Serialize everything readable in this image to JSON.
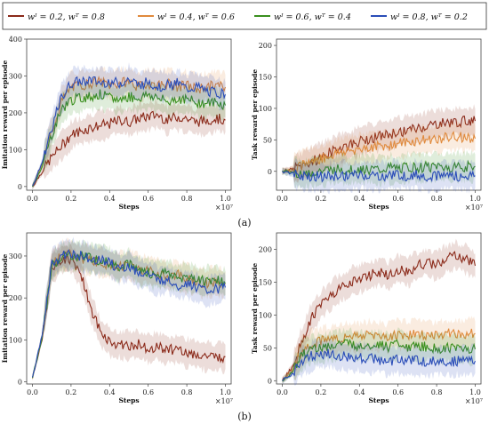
{
  "legend": {
    "entries": [
      {
        "label": "wᴵ = 0.2, wᵀ = 0.8",
        "color": "#8b2a1a"
      },
      {
        "label": "wᴵ = 0.4, wᵀ = 0.6",
        "color": "#e08a3c"
      },
      {
        "label": "wᴵ = 0.6, wᵀ = 0.4",
        "color": "#3a8f1e"
      },
      {
        "label": "wᴵ = 0.8, wᵀ = 0.2",
        "color": "#2a4db8"
      }
    ]
  },
  "captions": {
    "a": "(a)",
    "b": "(b)"
  },
  "x_multiplier": "×10⁷",
  "chart_data": [
    {
      "type": "line",
      "panel": "a-left",
      "xlabel": "Steps",
      "ylabel": "Imitation reward per episode",
      "x": [
        0.0,
        0.05,
        0.1,
        0.15,
        0.2,
        0.25,
        0.3,
        0.35,
        0.4,
        0.45,
        0.5,
        0.55,
        0.6,
        0.65,
        0.7,
        0.75,
        0.8,
        0.85,
        0.9,
        0.95,
        1.0
      ],
      "xticks": [
        "0.0",
        "0.2",
        "0.4",
        "0.6",
        "0.8",
        "1.0"
      ],
      "yticks": [
        "0",
        "100",
        "200",
        "300",
        "400"
      ],
      "xlim": [
        -0.03,
        1.03
      ],
      "ylim": [
        -10,
        400
      ],
      "series": [
        {
          "values": [
            0,
            40,
            80,
            110,
            140,
            150,
            160,
            165,
            170,
            180,
            175,
            185,
            190,
            195,
            180,
            190,
            185,
            175,
            180,
            185,
            180
          ]
        },
        {
          "values": [
            0,
            60,
            150,
            230,
            270,
            275,
            280,
            285,
            275,
            280,
            285,
            270,
            280,
            275,
            280,
            270,
            275,
            265,
            270,
            275,
            270
          ]
        },
        {
          "values": [
            0,
            55,
            140,
            210,
            235,
            240,
            245,
            250,
            240,
            235,
            245,
            240,
            250,
            240,
            230,
            240,
            235,
            230,
            225,
            230,
            220
          ]
        },
        {
          "values": [
            0,
            65,
            160,
            240,
            280,
            285,
            290,
            280,
            285,
            280,
            290,
            275,
            285,
            270,
            275,
            280,
            265,
            270,
            260,
            255,
            250
          ]
        }
      ]
    },
    {
      "type": "line",
      "panel": "a-right",
      "xlabel": "Steps",
      "ylabel": "Task reward per episode",
      "x": [
        0.0,
        0.05,
        0.1,
        0.15,
        0.2,
        0.25,
        0.3,
        0.35,
        0.4,
        0.45,
        0.5,
        0.55,
        0.6,
        0.65,
        0.7,
        0.75,
        0.8,
        0.85,
        0.9,
        0.95,
        1.0
      ],
      "xticks": [
        "0.0",
        "0.2",
        "0.4",
        "0.6",
        "0.8",
        "1.0"
      ],
      "yticks": [
        "0",
        "50",
        "100",
        "150",
        "200"
      ],
      "xlim": [
        -0.03,
        1.03
      ],
      "ylim": [
        -30,
        210
      ],
      "series": [
        {
          "values": [
            0,
            3,
            8,
            15,
            22,
            30,
            38,
            42,
            47,
            52,
            55,
            58,
            62,
            65,
            68,
            72,
            75,
            77,
            78,
            80,
            80
          ]
        },
        {
          "values": [
            0,
            3,
            10,
            15,
            20,
            25,
            30,
            33,
            36,
            38,
            40,
            42,
            44,
            46,
            48,
            50,
            52,
            53,
            55,
            54,
            52
          ]
        },
        {
          "values": [
            0,
            -2,
            -3,
            -2,
            0,
            2,
            3,
            2,
            4,
            3,
            2,
            5,
            4,
            6,
            5,
            7,
            8,
            6,
            8,
            7,
            8
          ]
        },
        {
          "values": [
            0,
            -3,
            -6,
            -8,
            -8,
            -9,
            -7,
            -8,
            -6,
            -7,
            -8,
            -6,
            -5,
            -7,
            -6,
            -8,
            -7,
            -6,
            -7,
            -8,
            -7
          ]
        }
      ]
    },
    {
      "type": "line",
      "panel": "b-left",
      "xlabel": "Steps",
      "ylabel": "Imitation reward per episode",
      "x": [
        0.0,
        0.05,
        0.1,
        0.15,
        0.2,
        0.25,
        0.3,
        0.35,
        0.4,
        0.45,
        0.5,
        0.55,
        0.6,
        0.65,
        0.7,
        0.75,
        0.8,
        0.85,
        0.9,
        0.95,
        1.0
      ],
      "xticks": [
        "0.0",
        "0.2",
        "0.4",
        "0.6",
        "0.8",
        "1.0"
      ],
      "yticks": [
        "0",
        "100",
        "200",
        "300"
      ],
      "xlim": [
        -0.03,
        1.03
      ],
      "ylim": [
        -5,
        355
      ],
      "series": [
        {
          "values": [
            10,
            100,
            270,
            290,
            295,
            260,
            180,
            120,
            95,
            90,
            85,
            90,
            80,
            85,
            75,
            80,
            70,
            65,
            60,
            58,
            60
          ]
        },
        {
          "values": [
            10,
            110,
            280,
            300,
            305,
            295,
            290,
            285,
            280,
            275,
            280,
            270,
            265,
            260,
            250,
            255,
            245,
            240,
            235,
            240,
            235
          ]
        },
        {
          "values": [
            10,
            105,
            275,
            295,
            300,
            300,
            295,
            290,
            285,
            275,
            280,
            265,
            260,
            255,
            260,
            245,
            250,
            245,
            240,
            245,
            235
          ]
        },
        {
          "values": [
            10,
            110,
            280,
            300,
            305,
            300,
            295,
            290,
            285,
            270,
            275,
            260,
            255,
            240,
            245,
            230,
            235,
            225,
            215,
            220,
            225
          ]
        }
      ]
    },
    {
      "type": "line",
      "panel": "b-right",
      "xlabel": "Steps",
      "ylabel": "Task reward per episode",
      "x": [
        0.0,
        0.05,
        0.1,
        0.15,
        0.2,
        0.25,
        0.3,
        0.35,
        0.4,
        0.45,
        0.5,
        0.55,
        0.6,
        0.65,
        0.7,
        0.75,
        0.8,
        0.85,
        0.9,
        0.95,
        1.0
      ],
      "xticks": [
        "0.0",
        "0.2",
        "0.4",
        "0.6",
        "0.8",
        "1.0"
      ],
      "yticks": [
        "0",
        "50",
        "100",
        "150",
        "200"
      ],
      "xlim": [
        -0.03,
        1.03
      ],
      "ylim": [
        -5,
        225
      ],
      "series": [
        {
          "values": [
            0,
            20,
            60,
            95,
            115,
            130,
            140,
            150,
            155,
            160,
            165,
            160,
            170,
            165,
            175,
            180,
            175,
            185,
            190,
            185,
            175
          ]
        },
        {
          "values": [
            0,
            15,
            45,
            55,
            60,
            62,
            65,
            68,
            65,
            70,
            68,
            65,
            70,
            68,
            72,
            70,
            68,
            72,
            70,
            72,
            72
          ]
        },
        {
          "values": [
            0,
            12,
            38,
            48,
            50,
            52,
            55,
            55,
            52,
            55,
            55,
            50,
            55,
            52,
            50,
            52,
            48,
            50,
            48,
            48,
            48
          ]
        },
        {
          "values": [
            0,
            10,
            28,
            38,
            42,
            40,
            38,
            35,
            36,
            34,
            32,
            30,
            32,
            30,
            30,
            28,
            30,
            28,
            30,
            30,
            30
          ]
        }
      ]
    }
  ]
}
